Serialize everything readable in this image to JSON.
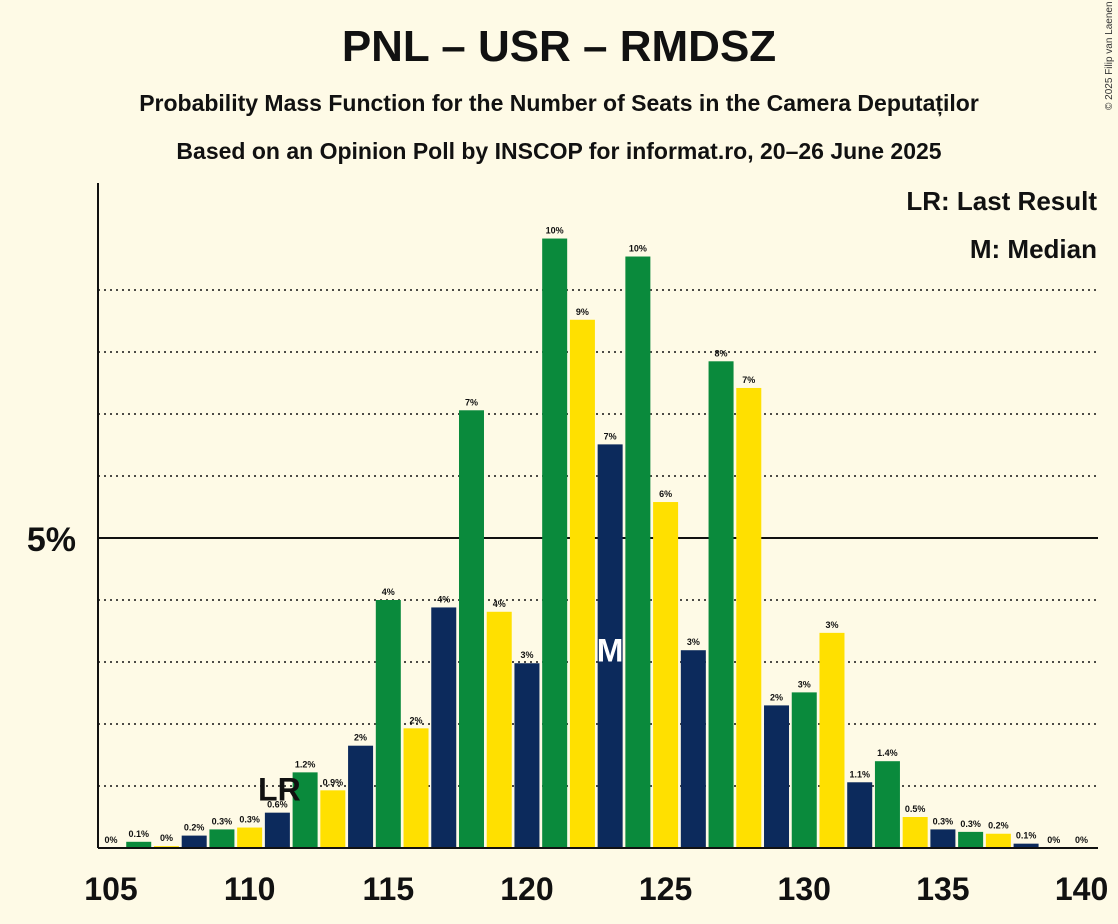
{
  "credit": "© 2025 Filip van Laenen",
  "chart_data": {
    "type": "bar",
    "title": "PNL – USR – RMDSZ",
    "subtitle": "Probability Mass Function for the Number of Seats in the Camera Deputaților",
    "subtitle2": "Based on an Opinion Poll by INSCOP for informat.ro, 20–26 June 2025",
    "xlabel": "",
    "ylabel": "",
    "ytick_label": "5%",
    "ytick_value": 5,
    "ylim": [
      0,
      10.7
    ],
    "xlim": [
      105,
      140
    ],
    "xticks": [
      105,
      110,
      115,
      120,
      125,
      130,
      135,
      140
    ],
    "x": [
      105,
      106,
      107,
      108,
      109,
      110,
      111,
      112,
      113,
      114,
      115,
      116,
      117,
      118,
      119,
      120,
      121,
      122,
      123,
      124,
      125,
      126,
      127,
      128,
      129,
      130,
      131,
      132,
      133,
      134,
      135,
      136,
      137,
      138,
      139,
      140
    ],
    "values": [
      0,
      0.1,
      0.03,
      0.2,
      0.3,
      0.33,
      0.57,
      1.22,
      0.93,
      1.65,
      4.0,
      1.93,
      3.88,
      7.06,
      3.81,
      2.98,
      9.83,
      8.52,
      6.51,
      9.54,
      5.58,
      3.19,
      7.85,
      7.42,
      2.3,
      2.51,
      3.47,
      1.06,
      1.4,
      0.5,
      0.3,
      0.26,
      0.23,
      0.07,
      0,
      0
    ],
    "labels": [
      "0%",
      "0.1%",
      "0%",
      "0.2%",
      "0.3%",
      "0.3%",
      "0.6%",
      "1.2%",
      "0.9%",
      "2%",
      "4%",
      "2%",
      "4%",
      "7%",
      "4%",
      "3%",
      "10%",
      "9%",
      "7%",
      "10%",
      "6%",
      "3%",
      "8%",
      "7%",
      "2%",
      "3%",
      "3%",
      "1.1%",
      "1.4%",
      "0.5%",
      "0.3%",
      "0.3%",
      "0.2%",
      "0.1%",
      "0%",
      "0%"
    ],
    "colors_cycle": [
      "#0c2a5c",
      "#0a8a3c",
      "#ffe000"
    ],
    "last_result": {
      "x": 111,
      "label": "LR"
    },
    "median": {
      "x": 123,
      "label": "M"
    },
    "legend": [
      "LR: Last Result",
      "M: Median"
    ],
    "legend_position": "top-right"
  }
}
